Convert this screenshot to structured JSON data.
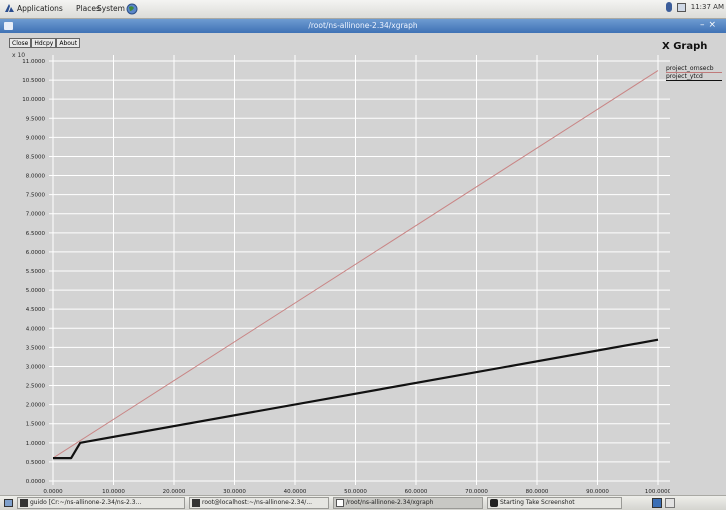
{
  "top_panel": {
    "menus": [
      "Applications",
      "Places",
      "System"
    ],
    "clock": "11:37 AM"
  },
  "window": {
    "title": "/root/ns-allinone-2.34/xgraph"
  },
  "toolbar": {
    "close_label": "Close",
    "hdcpy_label": "Hdcpy",
    "about_label": "About"
  },
  "plot": {
    "y_unit": "x 10"
  },
  "legend": {
    "title": "X Graph",
    "items": [
      {
        "label": "project_ornsecb",
        "color": "#c07a7a"
      },
      {
        "label": "project_ytcd",
        "color": "#111111"
      }
    ]
  },
  "colors": {
    "plot_bg": "#d3d3d3",
    "grid": "#ffffff",
    "series1": "#c98585",
    "series2": "#111111"
  },
  "chart_data": {
    "type": "line",
    "title": "X Graph",
    "xlabel": "",
    "ylabel": "x 10",
    "xlim": [
      0,
      100000
    ],
    "ylim": [
      0,
      11000
    ],
    "x_ticks": [
      "0.0000",
      "10.0000",
      "20.0000",
      "30.0000",
      "40.0000",
      "50.0000",
      "60.0000",
      "70.0000",
      "80.0000",
      "90.0000",
      "100.0000"
    ],
    "y_ticks": [
      "0.0000",
      "0.5000",
      "1.0000",
      "1.5000",
      "2.0000",
      "2.5000",
      "3.0000",
      "3.5000",
      "4.0000",
      "4.5000",
      "5.0000",
      "5.5000",
      "6.0000",
      "6.5000",
      "7.0000",
      "7.5000",
      "8.0000",
      "8.5000",
      "9.0000",
      "9.5000",
      "10.0000",
      "10.5000",
      "11.0000"
    ],
    "grid": true,
    "legend_position": "right",
    "series": [
      {
        "name": "project_ornsecb",
        "x": [
          0,
          100000
        ],
        "y": [
          600,
          10750
        ]
      },
      {
        "name": "project_ytcd",
        "x": [
          0,
          3000,
          4500,
          100000
        ],
        "y": [
          600,
          600,
          1000,
          3700
        ]
      }
    ]
  },
  "taskbar": {
    "tasks": [
      {
        "label": "guido [Cr:~/ns-allinone-2.34/ns-2.3...",
        "active": false
      },
      {
        "label": "root@localhost:~/ns-allinone-2.34/...",
        "active": false
      },
      {
        "label": "/root/ns-allinone-2.34/xgraph",
        "active": true
      },
      {
        "label": "Starting Take Screenshot",
        "active": false
      }
    ]
  }
}
